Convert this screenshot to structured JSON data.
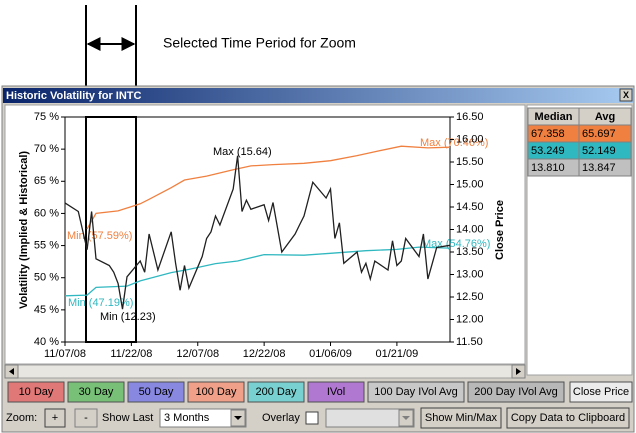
{
  "annotation_text": "Selected Time Period for Zoom",
  "window": {
    "title": "Historic Volatility for INTC",
    "close": "X"
  },
  "chart_data": {
    "type": "line",
    "y_label": "Volatility (Implied & Historical)",
    "y2_label": "Close Price",
    "xlim": [
      "11/07/08",
      "02/02/09"
    ],
    "xticks": [
      "11/07/08",
      "11/22/08",
      "12/07/08",
      "12/22/08",
      "01/06/09",
      "01/21/09"
    ],
    "ylim": [
      40,
      75
    ],
    "yticks": [
      {
        "value": 40,
        "label": "40 %"
      },
      {
        "value": 45,
        "label": "45 %"
      },
      {
        "value": 50,
        "label": "50 %"
      },
      {
        "value": 55,
        "label": "55 %"
      },
      {
        "value": 60,
        "label": "60 %"
      },
      {
        "value": 65,
        "label": "65 %"
      },
      {
        "value": 70,
        "label": "70 %"
      },
      {
        "value": 75,
        "label": "75 %"
      }
    ],
    "y2lim": [
      11.5,
      16.5
    ],
    "y2ticks": [
      {
        "value": 11.5,
        "label": "11.50"
      },
      {
        "value": 12,
        "label": "12.00"
      },
      {
        "value": 12.5,
        "label": "12.50"
      },
      {
        "value": 13,
        "label": "13.00"
      },
      {
        "value": 13.5,
        "label": "13.50"
      },
      {
        "value": 14,
        "label": "14.00"
      },
      {
        "value": 14.5,
        "label": "14.50"
      },
      {
        "value": 15,
        "label": "15.00"
      },
      {
        "value": 15.5,
        "label": "15.50"
      },
      {
        "value": 16,
        "label": "16.00"
      },
      {
        "value": 16.5,
        "label": "16.50"
      }
    ],
    "series": [
      {
        "color": "#f08040",
        "x": [
          "11/12/08",
          "11/14/08",
          "11/19/08",
          "11/24/08",
          "11/26/08",
          "12/01/08",
          "12/04/08",
          "12/09/08",
          "12/15/08",
          "12/19/08",
          "12/24/08",
          "12/31/08",
          "01/06/09",
          "01/12/09",
          "01/16/09",
          "01/22/09",
          "01/28/09",
          "02/02/09"
        ],
        "values": [
          57.59,
          60.0,
          60.4,
          61.5,
          62.2,
          64.0,
          65.2,
          65.8,
          66.8,
          67.4,
          67.6,
          67.8,
          68.2,
          69.0,
          69.6,
          70.46,
          70.2,
          70.3
        ]
      },
      {
        "color": "#30b8c0",
        "x": [
          "11/07/08",
          "11/12/08",
          "11/14/08",
          "11/21/08",
          "11/24/08",
          "12/01/08",
          "12/05/08",
          "12/11/08",
          "12/16/08",
          "12/22/08",
          "12/31/08",
          "01/06/09",
          "01/14/09",
          "01/21/09",
          "01/26/09",
          "02/02/09"
        ],
        "values": [
          47.19,
          47.3,
          48.5,
          48.7,
          49.5,
          50.8,
          51.3,
          52.2,
          52.6,
          53.6,
          53.5,
          53.8,
          54.2,
          54.4,
          54.76,
          54.6
        ]
      },
      {
        "color": "#202020",
        "axis": "y2",
        "x": [
          "11/07/08",
          "11/10/08",
          "11/12/08",
          "11/13/08",
          "11/14/08",
          "11/17/08",
          "11/18/08",
          "11/19/08",
          "11/20/08",
          "11/21/08",
          "11/24/08",
          "11/25/08",
          "11/26/08",
          "11/28/08",
          "12/01/08",
          "12/02/08",
          "12/03/08",
          "12/04/08",
          "12/05/08",
          "12/08/08",
          "12/09/08",
          "12/10/08",
          "12/11/08",
          "12/12/08",
          "12/15/08",
          "12/16/08",
          "12/17/08",
          "12/18/08",
          "12/19/08",
          "12/22/08",
          "12/23/08",
          "12/24/08",
          "12/26/08",
          "12/29/08",
          "12/30/08",
          "12/31/08",
          "01/02/09",
          "01/05/09",
          "01/06/09",
          "01/07/09",
          "01/08/09",
          "01/09/09",
          "01/12/09",
          "01/13/09",
          "01/14/09",
          "01/15/09",
          "01/16/09",
          "01/19/09",
          "01/20/09",
          "01/21/09",
          "01/22/09",
          "01/23/09",
          "01/26/09",
          "01/27/09",
          "01/28/09",
          "01/29/09",
          "01/30/09",
          "02/02/09"
        ],
        "values": [
          14.59,
          14.4,
          13.55,
          14.4,
          13.35,
          13.2,
          13.05,
          12.8,
          12.23,
          12.95,
          13.3,
          13.05,
          13.9,
          13.1,
          13.95,
          13.25,
          12.65,
          13.2,
          12.7,
          13.4,
          13.8,
          13.95,
          14.3,
          14.1,
          14.9,
          15.64,
          14.4,
          14.65,
          14.45,
          14.55,
          14.2,
          14.6,
          13.5,
          13.9,
          14.1,
          14.3,
          15.05,
          14.7,
          14.9,
          13.8,
          14.15,
          13.25,
          13.5,
          13.05,
          13.25,
          12.9,
          13.3,
          13.1,
          13.75,
          13.2,
          13.3,
          13.8,
          13.4,
          13.9,
          12.9,
          13.25,
          13.6,
          13.65
        ]
      }
    ],
    "annotations": [
      "Max (70.46%)",
      "Min (57.59%)",
      "Min (47.19%)",
      "Max (54.76%)",
      "Max (15.64)",
      "Min (12.23)"
    ]
  },
  "table": {
    "header": [
      "Median",
      "Avg"
    ],
    "rows": [
      [
        "67.358",
        "65.697"
      ],
      [
        "53.249",
        "52.149"
      ],
      [
        "13.810",
        "13.847"
      ]
    ]
  },
  "buttons": [
    "10 Day",
    "30 Day",
    "50 Day",
    "100 Day",
    "200 Day",
    "IVol",
    "100 Day IVol Avg",
    "200 Day IVol Avg",
    "Close Price"
  ],
  "controls": {
    "zoom": "Zoom:",
    "zoom_in": "+",
    "zoom_out": "-",
    "show_last": "Show Last",
    "period": "3 Months",
    "overlay": "Overlay",
    "show_min_max": "Show Min/Max",
    "copy": "Copy Data to Clipboard"
  }
}
